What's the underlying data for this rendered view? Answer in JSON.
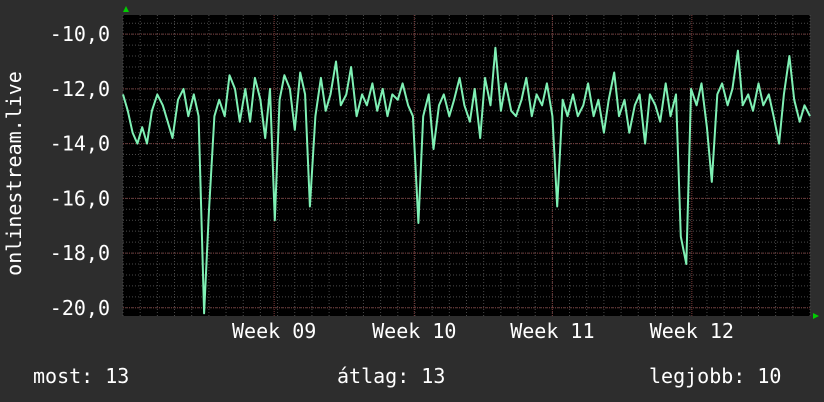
{
  "chart_data": {
    "type": "line",
    "ylabel": "onlinestream.live",
    "ylim": [
      -20.3,
      -9.3
    ],
    "yticks": [
      -20,
      -18,
      -16,
      -14,
      -12,
      -10
    ],
    "ytick_labels": [
      "-20,0",
      "-18,0",
      "-16,0",
      "-14,0",
      "-12,0",
      "-10,0"
    ],
    "xlim": [
      0,
      100
    ],
    "xticks": [
      {
        "x": 22,
        "label": "Week 09"
      },
      {
        "x": 42.4,
        "label": "Week 10"
      },
      {
        "x": 62.5,
        "label": "Week 11"
      },
      {
        "x": 82.8,
        "label": "Week 12"
      }
    ],
    "grid": true,
    "series": [
      {
        "color": "#7ff0b4",
        "x": [
          0,
          0.7,
          1.4,
          2.1,
          2.8,
          3.5,
          4.2,
          5,
          5.8,
          6.5,
          7.2,
          8,
          8.8,
          9.5,
          10.3,
          11,
          11.8,
          12.5,
          13.3,
          14,
          14.8,
          15.5,
          16.3,
          17,
          17.8,
          18.5,
          19.2,
          20,
          20.7,
          21.4,
          22.1,
          22.8,
          23.5,
          24.3,
          25,
          25.8,
          26.5,
          27.2,
          28,
          28.8,
          29.5,
          30.2,
          31,
          31.7,
          32.5,
          33.2,
          34,
          34.8,
          35.5,
          36.3,
          37,
          37.8,
          38.5,
          39.2,
          40,
          40.7,
          41.5,
          42.2,
          43,
          43.7,
          44.5,
          45.2,
          46,
          46.7,
          47.5,
          48.2,
          49,
          49.7,
          50.5,
          51.2,
          52,
          52.7,
          53.5,
          54.2,
          55,
          55.7,
          56.5,
          57.2,
          58,
          58.7,
          59.5,
          60.2,
          61,
          61.7,
          62.5,
          63.2,
          64,
          64.7,
          65.5,
          66.2,
          67,
          67.7,
          68.5,
          69.2,
          70,
          70.7,
          71.5,
          72.2,
          73,
          73.7,
          74.5,
          75.2,
          76,
          76.7,
          77.5,
          78.2,
          79,
          79.7,
          80.5,
          81.2,
          82,
          82.7,
          83.5,
          84.2,
          85,
          85.7,
          86.5,
          87.2,
          88,
          88.7,
          89.5,
          90.2,
          91,
          91.7,
          92.5,
          93.2,
          94,
          94.7,
          95.5,
          96.2,
          97,
          97.7,
          98.5,
          99.2,
          100
        ],
        "y": [
          -12.2,
          -12.8,
          -13.6,
          -14.0,
          -13.4,
          -14.0,
          -12.8,
          -12.2,
          -12.6,
          -13.2,
          -13.8,
          -12.4,
          -12.0,
          -13.0,
          -12.2,
          -13.0,
          -20.2,
          -16.5,
          -13.0,
          -12.4,
          -13.0,
          -11.5,
          -12.0,
          -13.2,
          -12.0,
          -13.2,
          -11.6,
          -12.4,
          -13.8,
          -12.0,
          -16.8,
          -12.4,
          -11.5,
          -12.0,
          -13.5,
          -11.4,
          -12.2,
          -16.3,
          -13.0,
          -11.6,
          -12.8,
          -12.2,
          -11.0,
          -12.6,
          -12.2,
          -11.2,
          -13.0,
          -12.2,
          -12.6,
          -11.8,
          -12.8,
          -12.0,
          -13.0,
          -12.2,
          -12.4,
          -11.8,
          -12.6,
          -13.0,
          -16.9,
          -13.0,
          -12.2,
          -14.2,
          -12.6,
          -12.2,
          -13.0,
          -12.4,
          -11.6,
          -12.6,
          -13.2,
          -12.0,
          -13.8,
          -11.6,
          -12.6,
          -10.5,
          -12.8,
          -11.8,
          -12.8,
          -13.0,
          -12.4,
          -11.6,
          -13.0,
          -12.2,
          -12.6,
          -11.8,
          -13.0,
          -16.3,
          -12.4,
          -13.0,
          -12.2,
          -13.0,
          -12.6,
          -11.8,
          -13.0,
          -12.4,
          -13.6,
          -12.4,
          -11.4,
          -13.0,
          -12.4,
          -13.6,
          -12.6,
          -12.2,
          -14.0,
          -12.2,
          -12.6,
          -13.2,
          -11.8,
          -13.0,
          -12.2,
          -17.4,
          -18.4,
          -12.0,
          -12.6,
          -11.8,
          -13.4,
          -15.4,
          -12.2,
          -11.8,
          -12.6,
          -12.0,
          -10.6,
          -12.6,
          -12.2,
          -12.8,
          -11.8,
          -12.6,
          -12.2,
          -13.0,
          -14.0,
          -12.2,
          -10.8,
          -12.4,
          -13.2,
          -12.6,
          -13.0
        ]
      }
    ]
  },
  "stats": {
    "current": "most: 13",
    "average": "átlag: 13",
    "best": "legjobb: 10"
  },
  "colors": {
    "background": "#2d2d2d",
    "plot_background": "#000000",
    "minor_grid": "#4a4a4a",
    "major_grid": "#7a3a3a",
    "axis_arrow": "#00cc00",
    "text": "#ffffff"
  }
}
